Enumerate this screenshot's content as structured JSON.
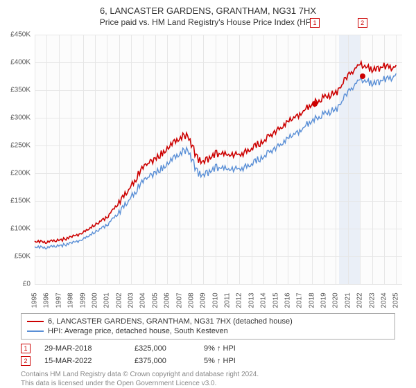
{
  "header": {
    "title": "6, LANCASTER GARDENS, GRANTHAM, NG31 7HX",
    "subtitle": "Price paid vs. HM Land Registry's House Price Index (HPI)"
  },
  "chart": {
    "type": "line",
    "background_color": "#fcfcfc",
    "grid_color": "#e6e6e6",
    "xlim": [
      1995,
      2025.5
    ],
    "ylim": [
      0,
      450000
    ],
    "y_ticks": [
      0,
      50000,
      100000,
      150000,
      200000,
      250000,
      300000,
      350000,
      400000,
      450000
    ],
    "y_tick_labels": [
      "£0",
      "£50K",
      "£100K",
      "£150K",
      "£200K",
      "£250K",
      "£300K",
      "£350K",
      "£400K",
      "£450K"
    ],
    "x_ticks": [
      1995,
      1996,
      1997,
      1998,
      1999,
      2000,
      2001,
      2002,
      2003,
      2004,
      2005,
      2006,
      2007,
      2008,
      2009,
      2010,
      2011,
      2012,
      2013,
      2014,
      2015,
      2016,
      2017,
      2018,
      2019,
      2020,
      2021,
      2022,
      2023,
      2024,
      2025
    ],
    "highlight_band": {
      "xstart": 2020.25,
      "xend": 2022.0,
      "color": "rgba(180,200,230,0.25)"
    },
    "series": [
      {
        "name": "property",
        "color": "#cc0000",
        "width": 1.6,
        "x": [
          1995,
          1996,
          1997,
          1998,
          1999,
          2000,
          2001,
          2002,
          2003,
          2004,
          2005,
          2006,
          2007,
          2007.7,
          2008.5,
          2009,
          2010,
          2011,
          2012,
          2013,
          2014,
          2015,
          2016,
          2017,
          2018,
          2019,
          2020,
          2021,
          2022,
          2023,
          2024,
          2025
        ],
        "y": [
          78000,
          77000,
          80000,
          86000,
          94000,
          108000,
          122000,
          148000,
          180000,
          215000,
          230000,
          248000,
          268000,
          272000,
          230000,
          222000,
          240000,
          236000,
          238000,
          248000,
          262000,
          278000,
          295000,
          310000,
          328000,
          340000,
          348000,
          378000,
          402000,
          390000,
          396000,
          395000
        ]
      },
      {
        "name": "hpi",
        "color": "#5a8fd6",
        "width": 1.4,
        "x": [
          1995,
          1996,
          1997,
          1998,
          1999,
          2000,
          2001,
          2002,
          2003,
          2004,
          2005,
          2006,
          2007,
          2007.7,
          2008.5,
          2009,
          2010,
          2011,
          2012,
          2013,
          2014,
          2015,
          2016,
          2017,
          2018,
          2019,
          2020,
          2021,
          2022,
          2023,
          2024,
          2025
        ],
        "y": [
          68000,
          67000,
          70000,
          75000,
          82000,
          95000,
          108000,
          130000,
          160000,
          190000,
          205000,
          220000,
          240000,
          246000,
          205000,
          198000,
          215000,
          210000,
          212000,
          220000,
          234000,
          248000,
          265000,
          280000,
          298000,
          310000,
          318000,
          348000,
          375000,
          365000,
          372000,
          380000
        ]
      }
    ],
    "markers": [
      {
        "id": "1",
        "x": 2018.25,
        "y": 325000
      },
      {
        "id": "2",
        "x": 2022.2,
        "y": 375000
      }
    ]
  },
  "legend": {
    "items": [
      {
        "color": "#cc0000",
        "label": "6, LANCASTER GARDENS, GRANTHAM, NG31 7HX (detached house)"
      },
      {
        "color": "#5a8fd6",
        "label": "HPI: Average price, detached house, South Kesteven"
      }
    ]
  },
  "events": [
    {
      "id": "1",
      "date": "29-MAR-2018",
      "price": "£325,000",
      "delta": "9% ↑ HPI"
    },
    {
      "id": "2",
      "date": "15-MAR-2022",
      "price": "£375,000",
      "delta": "5% ↑ HPI"
    }
  ],
  "attribution": {
    "line1": "Contains HM Land Registry data © Crown copyright and database right 2024.",
    "line2": "This data is licensed under the Open Government Licence v3.0."
  }
}
